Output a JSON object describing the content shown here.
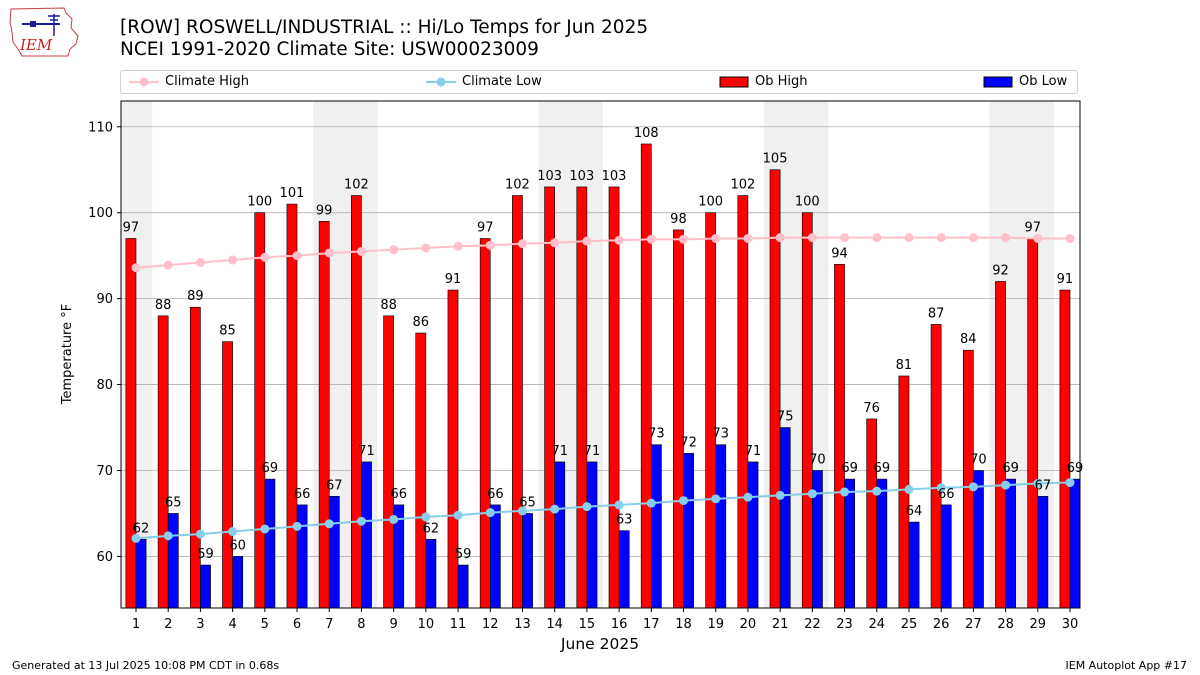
{
  "header": {
    "logo_text": "IEM",
    "title_line1": "[ROW] ROSWELL/INDUSTRIAL :: Hi/Lo Temps for Jun 2025",
    "title_line2": "NCEI 1991-2020 Climate Site: USW00023009"
  },
  "legend": {
    "climate_high": "Climate High",
    "climate_low": "Climate Low",
    "ob_high": "Ob High",
    "ob_low": "Ob Low"
  },
  "footer": {
    "generated": "Generated at 13 Jul 2025 10:08 PM CDT in 0.68s",
    "app": "IEM Autoplot App #17"
  },
  "colors": {
    "climate_high": "#ffc0cb",
    "climate_low": "#87ceeb",
    "ob_high": "#ff0000",
    "ob_low": "#0000ff",
    "weekend_band": "#f0f0f0",
    "grid": "#b0b0b0"
  },
  "chart_data": {
    "type": "bar",
    "title": "[ROW] ROSWELL/INDUSTRIAL :: Hi/Lo Temps for Jun 2025",
    "subtitle": "NCEI 1991-2020 Climate Site: USW00023009",
    "xlabel": "June 2025",
    "ylabel": "Temperature °F",
    "ylim": [
      54,
      113
    ],
    "yticks": [
      60,
      70,
      80,
      90,
      100,
      110
    ],
    "grid": true,
    "legend_position": "top",
    "categories": [
      "1",
      "2",
      "3",
      "4",
      "5",
      "6",
      "7",
      "8",
      "9",
      "10",
      "11",
      "12",
      "13",
      "14",
      "15",
      "16",
      "17",
      "18",
      "19",
      "20",
      "21",
      "22",
      "23",
      "24",
      "25",
      "26",
      "27",
      "28",
      "29",
      "30"
    ],
    "weekend_bands": [
      [
        1,
        1
      ],
      [
        7,
        8
      ],
      [
        14,
        15
      ],
      [
        21,
        22
      ],
      [
        28,
        29
      ]
    ],
    "series": [
      {
        "name": "Ob High",
        "kind": "bar",
        "values": [
          97,
          88,
          89,
          85,
          100,
          101,
          99,
          102,
          88,
          86,
          91,
          97,
          102,
          103,
          103,
          103,
          108,
          98,
          100,
          102,
          105,
          100,
          94,
          76,
          81,
          87,
          84,
          92,
          97,
          91
        ]
      },
      {
        "name": "Ob Low",
        "kind": "bar",
        "values": [
          62,
          65,
          59,
          60,
          69,
          66,
          67,
          71,
          66,
          62,
          59,
          66,
          65,
          71,
          71,
          63,
          73,
          72,
          73,
          71,
          75,
          70,
          69,
          69,
          64,
          66,
          70,
          69,
          67,
          69
        ]
      },
      {
        "name": "Climate High",
        "kind": "line",
        "values": [
          93.6,
          93.9,
          94.2,
          94.5,
          94.8,
          95.0,
          95.3,
          95.5,
          95.7,
          95.9,
          96.1,
          96.2,
          96.4,
          96.5,
          96.7,
          96.8,
          96.9,
          96.9,
          97.0,
          97.0,
          97.1,
          97.1,
          97.1,
          97.1,
          97.1,
          97.1,
          97.1,
          97.1,
          97.0,
          97.0
        ]
      },
      {
        "name": "Climate Low",
        "kind": "line",
        "values": [
          62.1,
          62.4,
          62.6,
          62.9,
          63.2,
          63.5,
          63.8,
          64.1,
          64.3,
          64.6,
          64.8,
          65.1,
          65.3,
          65.5,
          65.8,
          66.0,
          66.2,
          66.5,
          66.7,
          66.9,
          67.1,
          67.3,
          67.5,
          67.6,
          67.8,
          68.0,
          68.1,
          68.3,
          68.5,
          68.6
        ]
      }
    ]
  }
}
